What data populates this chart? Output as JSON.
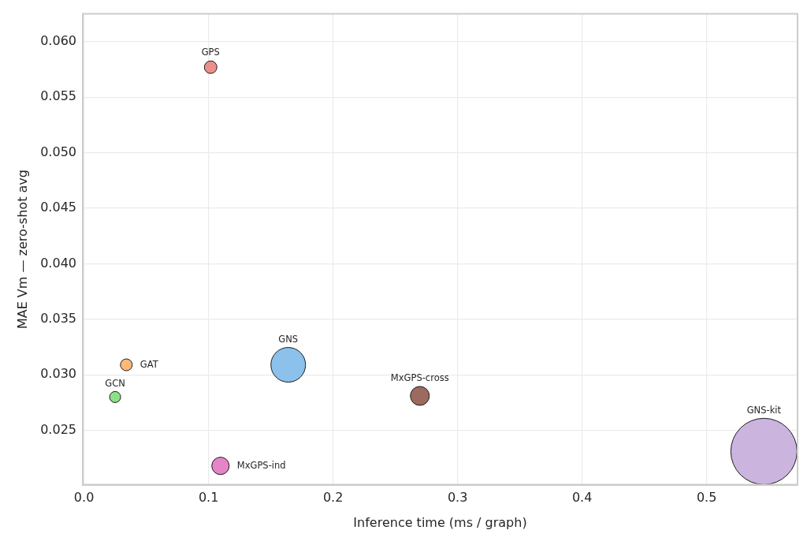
{
  "chart_data": {
    "type": "bubble",
    "xlabel": "Inference time (ms / graph)",
    "ylabel": "MAE Vm — zero-shot avg",
    "xlim": [
      -0.001,
      0.573
    ],
    "ylim": [
      0.0201,
      0.0625
    ],
    "xticks": [
      {
        "value": 0,
        "label": "0.0"
      },
      {
        "value": 0.1,
        "label": "0.1"
      },
      {
        "value": 0.2,
        "label": "0.2"
      },
      {
        "value": 0.3,
        "label": "0.3"
      },
      {
        "value": 0.4,
        "label": "0.4"
      },
      {
        "value": 0.5,
        "label": "0.5"
      }
    ],
    "yticks": [
      {
        "value": 0.025,
        "label": "0.025"
      },
      {
        "value": 0.03,
        "label": "0.030"
      },
      {
        "value": 0.035,
        "label": "0.035"
      },
      {
        "value": 0.04,
        "label": "0.040"
      },
      {
        "value": 0.045,
        "label": "0.045"
      },
      {
        "value": 0.05,
        "label": "0.050"
      },
      {
        "value": 0.055,
        "label": "0.055"
      },
      {
        "value": 0.06,
        "label": "0.060"
      }
    ],
    "grid": true,
    "marker": "circle",
    "series": [
      {
        "name": "GCN",
        "color": "#8de08a",
        "x": [
          0.025
        ],
        "values": [
          0.028
        ],
        "sizes": [
          0.028
        ]
      },
      {
        "name": "GAT",
        "color": "#ffb77a",
        "x": [
          0.034
        ],
        "values": [
          0.0309
        ],
        "sizes": [
          0.032
        ]
      },
      {
        "name": "GPS",
        "color": "#ec8f8a",
        "x": [
          0.1017
        ],
        "values": [
          0.0577
        ],
        "sizes": [
          0.036
        ]
      },
      {
        "name": "MxGPS-ind",
        "color": "#e585c8",
        "x": [
          0.1096
        ],
        "values": [
          0.0218
        ],
        "sizes": [
          0.069
        ]
      },
      {
        "name": "GNS",
        "color": "#8bc1ea",
        "x": [
          0.164
        ],
        "values": [
          0.0309
        ],
        "sizes": [
          0.274
        ]
      },
      {
        "name": "MxGPS-cross",
        "color": "#9c6a5e",
        "x": [
          0.2697
        ],
        "values": [
          0.0281
        ],
        "sizes": [
          0.082
        ]
      },
      {
        "name": "GNS-kit",
        "color": "#cbb5de",
        "x": [
          0.546
        ],
        "values": [
          0.0231
        ],
        "sizes": [
          1
        ]
      }
    ]
  }
}
